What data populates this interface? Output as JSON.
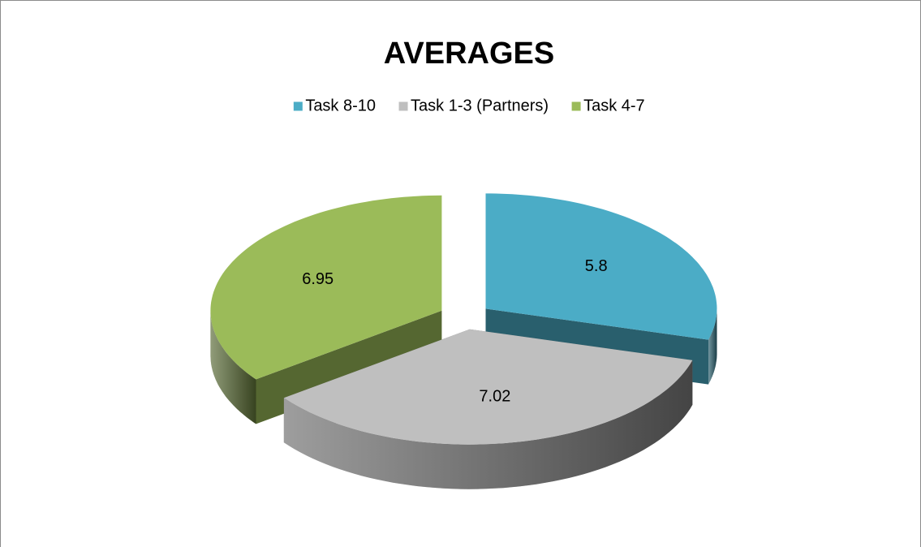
{
  "chart_data": {
    "type": "pie3d",
    "title": "AVERAGES",
    "categories": [
      "Task 8-10",
      "Task 1-3 (Partners)",
      "Task 4-7"
    ],
    "values": [
      5.8,
      7.02,
      6.95
    ],
    "colors": [
      "#4bacc6",
      "#bfbfbf",
      "#9bbb59"
    ],
    "legend": "top"
  }
}
